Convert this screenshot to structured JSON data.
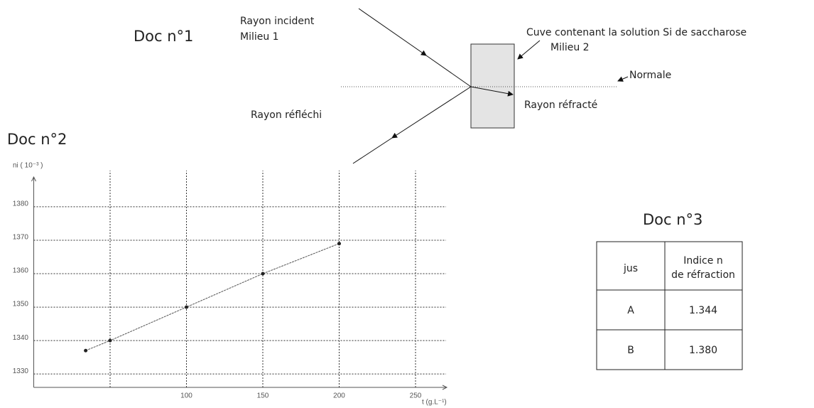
{
  "doc1": {
    "title": "Doc n°1",
    "incident": "Rayon incident",
    "medium1": "Milieu 1",
    "cuve": "Cuve contenant la solution Si de saccharose",
    "medium2": "Milieu 2",
    "normal": "Normale",
    "refracted": "Rayon réfracté",
    "reflected": "Rayon réfléchi"
  },
  "doc2": {
    "title": "Doc n°2"
  },
  "chart_data": {
    "type": "line",
    "ylabel": "ni ( 10⁻³ )",
    "xlabel": "t (g.L⁻¹)",
    "x": [
      34,
      50,
      100,
      150,
      200
    ],
    "values": [
      1337,
      1340,
      1350,
      1360,
      1369
    ],
    "color": "#555555",
    "xlim": [
      0,
      270
    ],
    "ylim": [
      1326,
      1387
    ],
    "xticks": [
      100,
      150,
      200,
      250
    ],
    "xgrid": [
      50,
      100,
      150,
      200,
      250
    ],
    "yticks": [
      1330,
      1340,
      1350,
      1360,
      1370,
      1380
    ],
    "grid": true
  },
  "doc3": {
    "title": "Doc n°3",
    "table": {
      "header": [
        "jus",
        [
          "Indice n",
          "de réfraction"
        ]
      ],
      "rows": [
        [
          "A",
          "1.344"
        ],
        [
          "B",
          "1.380"
        ]
      ]
    }
  }
}
